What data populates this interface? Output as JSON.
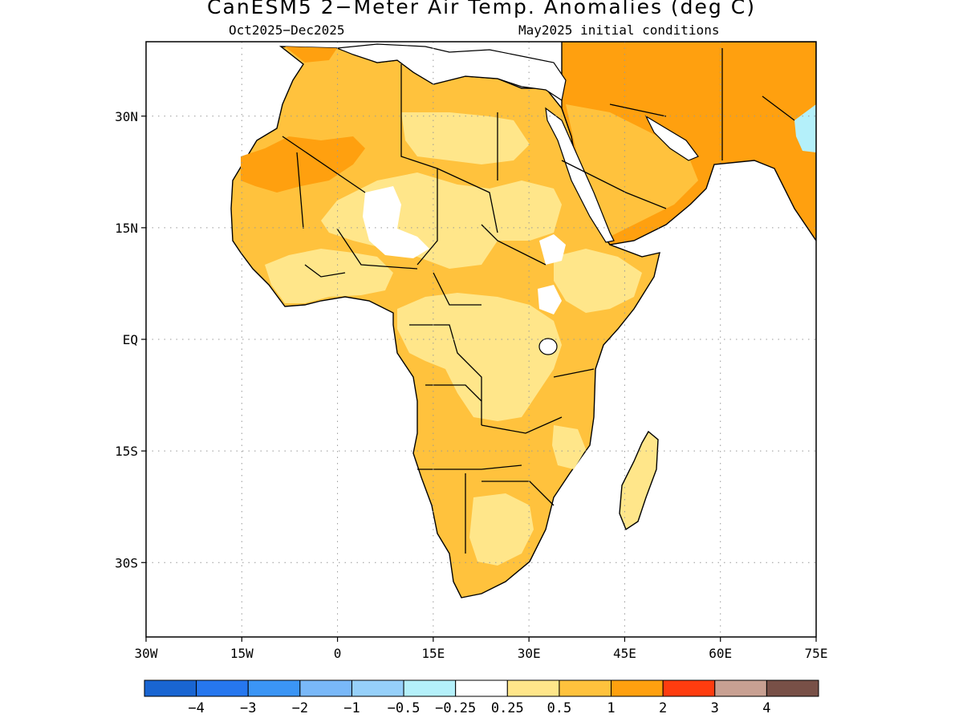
{
  "header": {
    "title": "CanESM5 2−Meter Air Temp. Anomalies (deg C)",
    "subtitle_left": "Oct2025−Dec2025",
    "subtitle_right": "May2025 initial conditions"
  },
  "map": {
    "projection": "lat-lon",
    "lon_range": [
      -30,
      75
    ],
    "lat_range": [
      -40,
      40
    ],
    "lon_ticks": [
      {
        "value": -30,
        "label": "30W"
      },
      {
        "value": -15,
        "label": "15W"
      },
      {
        "value": 0,
        "label": "0"
      },
      {
        "value": 15,
        "label": "15E"
      },
      {
        "value": 30,
        "label": "30E"
      },
      {
        "value": 45,
        "label": "45E"
      },
      {
        "value": 60,
        "label": "60E"
      },
      {
        "value": 75,
        "label": "75E"
      }
    ],
    "lat_ticks": [
      {
        "value": 30,
        "label": "30N"
      },
      {
        "value": 15,
        "label": "15N"
      },
      {
        "value": 0,
        "label": "EQ"
      },
      {
        "value": -15,
        "label": "15S"
      },
      {
        "value": -30,
        "label": "30S"
      }
    ],
    "gridlines": "dotted",
    "ocean_color": "#ffffff",
    "coastline_color": "#000000"
  },
  "colorbar": {
    "colors": [
      "#1965d2",
      "#2677ef",
      "#3b95f5",
      "#79b8f8",
      "#96d0fa",
      "#b4f0fa",
      "#ffffff",
      "#ffe68a",
      "#ffc23d",
      "#ffa00f",
      "#ff3c0f",
      "#c8a092",
      "#785047"
    ],
    "labels": [
      "−4",
      "−3",
      "−2",
      "−1",
      "−0.5",
      "−0.25",
      "0.25",
      "0.5",
      "1",
      "2",
      "3",
      "4"
    ]
  },
  "anomaly_regions": [
    {
      "name": "sahara-west",
      "level": "1 to 2",
      "color": "#ffa00f"
    },
    {
      "name": "north-africa",
      "level": "0.5 to 1",
      "color": "#ffc23d"
    },
    {
      "name": "sahel",
      "level": "0.25 to 0.5",
      "color": "#ffe68a"
    },
    {
      "name": "congo-basin",
      "level": "0.25 to 0.5",
      "color": "#ffe68a"
    },
    {
      "name": "southern-africa",
      "level": "0.5 to 1",
      "color": "#ffc23d"
    },
    {
      "name": "middle-east",
      "level": "1 to 2",
      "color": "#ffa00f"
    },
    {
      "name": "madagascar",
      "level": "0.25 to 0.5",
      "color": "#ffe68a"
    },
    {
      "name": "arabian-sea-coast",
      "level": "−0.5 to −0.25",
      "color": "#b4f0fa"
    }
  ]
}
